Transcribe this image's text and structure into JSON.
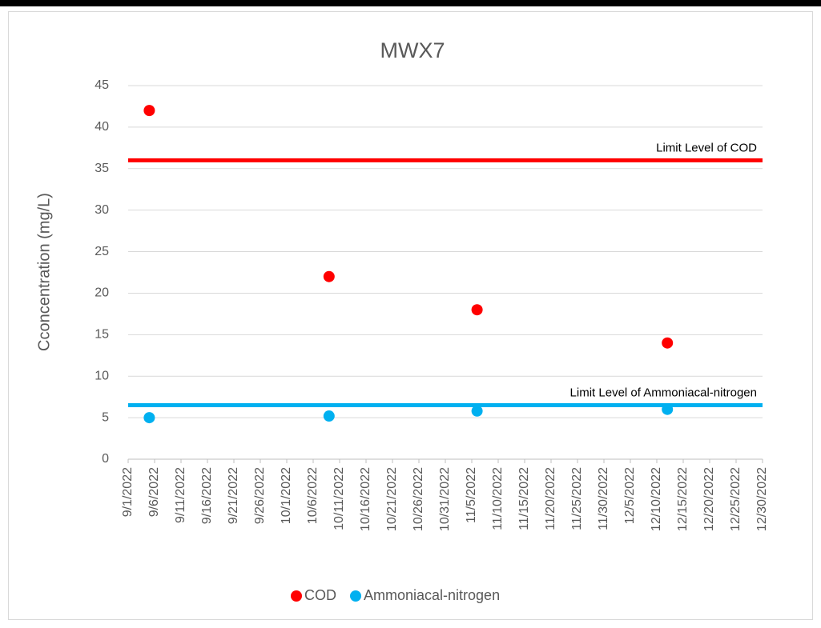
{
  "chart_data": {
    "type": "scatter",
    "title": "MWX7",
    "y_label": "Cconcentration (mg/L)",
    "series": [
      {
        "name": "COD",
        "color": "#ff0000",
        "x": [
          "9/5/2022",
          "10/9/2022",
          "11/6/2022",
          "12/12/2022"
        ],
        "values": [
          42,
          22,
          18,
          14
        ]
      },
      {
        "name": "Ammoniacal-nitrogen",
        "color": "#00b0f0",
        "x": [
          "9/5/2022",
          "10/9/2022",
          "11/6/2022",
          "12/12/2022"
        ],
        "values": [
          5,
          5.2,
          5.8,
          6
        ]
      }
    ],
    "reference_lines": [
      {
        "label": "Limit Level of COD",
        "value": 36,
        "color": "#ff0000"
      },
      {
        "label": "Limit Level of Ammoniacal-nitrogen",
        "value": 6.5,
        "color": "#00b0f0"
      }
    ],
    "xlim": [
      "9/1/2022",
      "12/30/2022"
    ],
    "xticks": [
      "9/1/2022",
      "9/6/2022",
      "9/11/2022",
      "9/16/2022",
      "9/21/2022",
      "9/26/2022",
      "10/1/2022",
      "10/6/2022",
      "10/11/2022",
      "10/16/2022",
      "10/21/2022",
      "10/26/2022",
      "10/31/2022",
      "11/5/2022",
      "11/10/2022",
      "11/15/2022",
      "11/20/2022",
      "11/25/2022",
      "11/30/2022",
      "12/5/2022",
      "12/10/2022",
      "12/15/2022",
      "12/20/2022",
      "12/25/2022",
      "12/30/2022"
    ],
    "ylim": [
      0,
      45
    ],
    "yticks": [
      0,
      5,
      10,
      15,
      20,
      25,
      30,
      35,
      40,
      45
    ],
    "grid": true,
    "legend": "bottom"
  }
}
